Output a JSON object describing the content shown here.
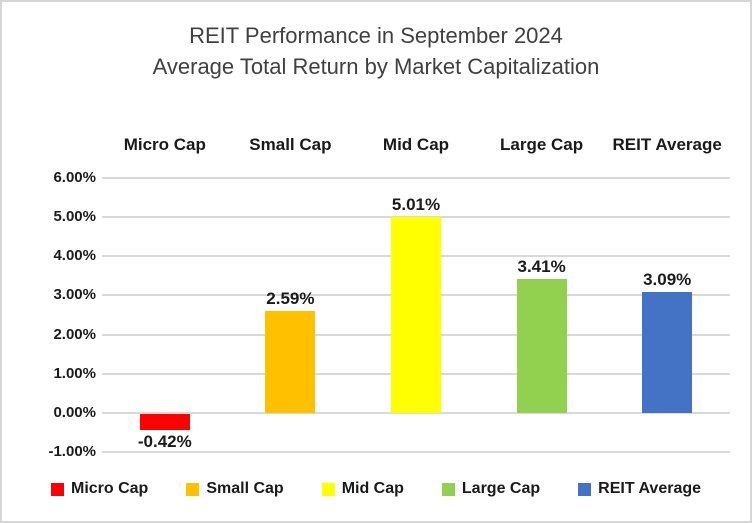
{
  "title": {
    "line1": "REIT Performance in September 2024",
    "line2": "Average Total Return by Market Capitalization"
  },
  "chart_data": {
    "type": "bar",
    "title": "REIT Performance in September 2024 — Average Total Return by Market Capitalization",
    "xlabel": "",
    "ylabel": "",
    "categories": [
      "Micro Cap",
      "Small Cap",
      "Mid Cap",
      "Large Cap",
      "REIT Average"
    ],
    "values": [
      -0.42,
      2.59,
      5.01,
      3.41,
      3.09
    ],
    "data_labels": [
      "-0.42%",
      "2.59%",
      "5.01%",
      "3.41%",
      "3.09%"
    ],
    "bar_colors": [
      "#FF0000",
      "#FFC000",
      "#FFFF00",
      "#92D050",
      "#4472C4"
    ],
    "y_ticks": [
      {
        "label": "6.00%",
        "value": 6
      },
      {
        "label": "5.00%",
        "value": 5
      },
      {
        "label": "4.00%",
        "value": 4
      },
      {
        "label": "3.00%",
        "value": 3
      },
      {
        "label": "2.00%",
        "value": 2
      },
      {
        "label": "1.00%",
        "value": 1
      },
      {
        "label": "0.00%",
        "value": 0
      },
      {
        "label": "-1.00%",
        "value": -1
      }
    ],
    "ylim": [
      -1,
      6
    ],
    "grid": true,
    "legend": {
      "position": "bottom",
      "entries": [
        "Micro Cap",
        "Small Cap",
        "Mid Cap",
        "Large Cap",
        "REIT Average"
      ]
    }
  },
  "colors": {
    "background": "#FFFFFF",
    "border": "#D6D6D6",
    "gridline": "#D9D9D9",
    "title_text": "#404040",
    "label_text": "#1A1A1A"
  }
}
